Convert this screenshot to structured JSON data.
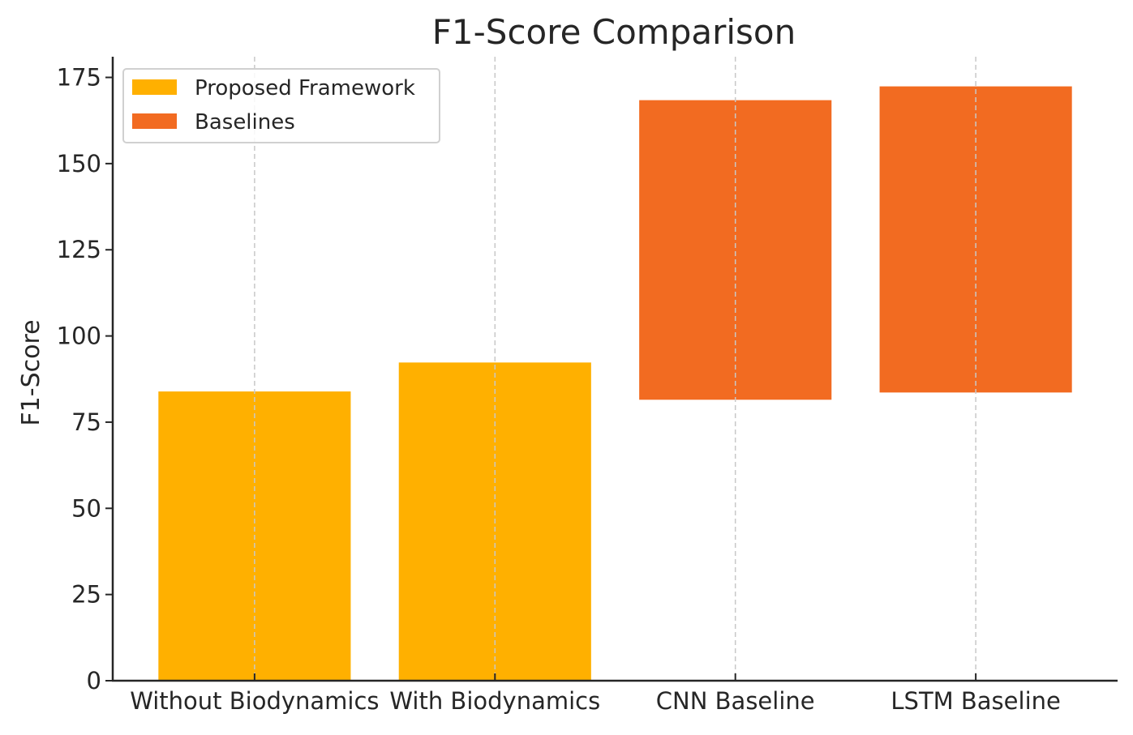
{
  "chart_data": {
    "type": "bar",
    "title": "F1-Score Comparison",
    "xlabel": "",
    "ylabel": "F1-Score",
    "categories": [
      "Without Biodynamics",
      "With Biodynamics",
      "CNN Baseline",
      "LSTM Baseline"
    ],
    "series": [
      {
        "name": "Proposed Framework",
        "color": "#FFB000",
        "bottoms": [
          0,
          0,
          null,
          null
        ],
        "tops": [
          83.9,
          92.3,
          null,
          null
        ]
      },
      {
        "name": "Baselines",
        "color": "#F26B21",
        "bottoms": [
          null,
          null,
          81.5,
          83.6
        ],
        "tops": [
          null,
          null,
          168.4,
          172.4
        ]
      }
    ],
    "ylim": [
      0,
      181
    ],
    "xlim": [
      -0.59,
      3.59
    ],
    "yticks": [
      0,
      25,
      50,
      75,
      100,
      125,
      150,
      175
    ],
    "grid": "vertical dashed at categories",
    "legend_position": "top-left"
  }
}
